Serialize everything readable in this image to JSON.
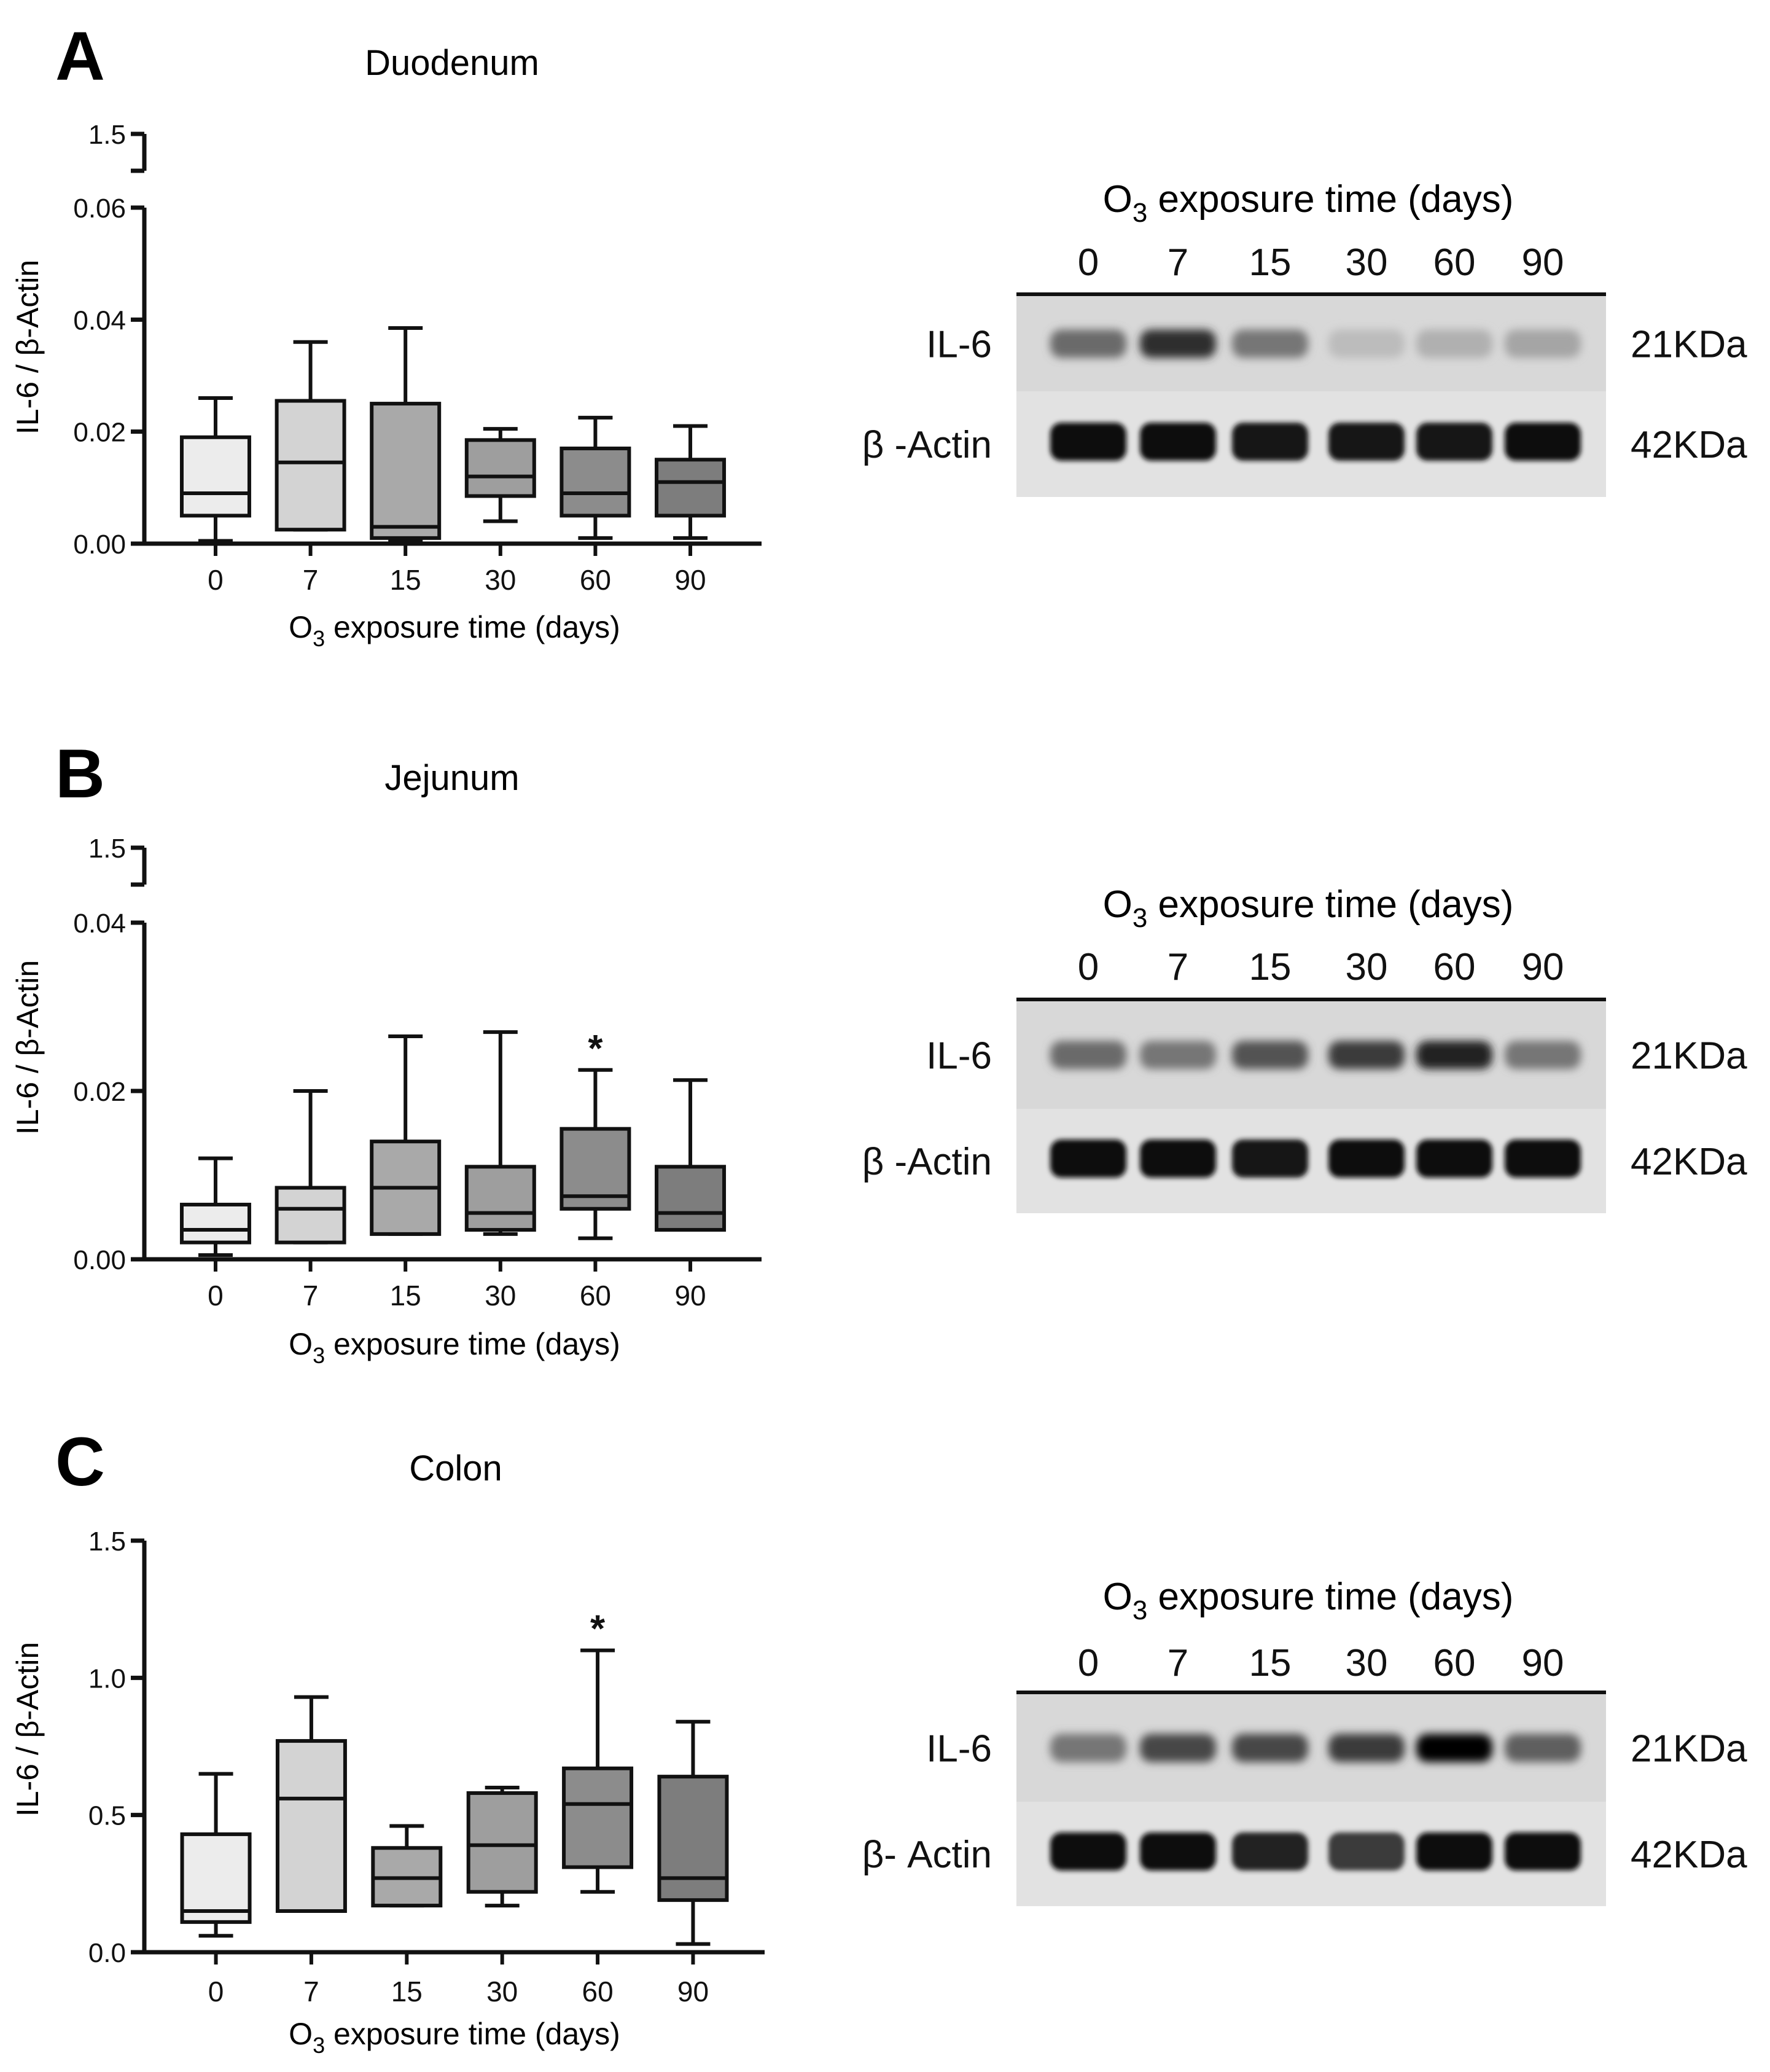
{
  "figure": {
    "xlabel_main": "O",
    "xlabel_sub": "3",
    "xlabel_rest": " exposure time (days)",
    "blot_header_main": "O",
    "blot_header_sub": "3",
    "blot_header_rest": " exposure time (days)",
    "colors": {
      "box_fills": [
        "#ececec",
        "#d3d3d3",
        "#a9a9a9",
        "#9e9e9e",
        "#8c8c8c",
        "#7d7d7d"
      ],
      "stroke": "#111111",
      "blot_bg": "#d8d8d8"
    }
  },
  "chart_data": [
    {
      "panel_letter": "A",
      "type": "box",
      "title": "Duodenum",
      "ylabel": "IL-6 / β-Actin",
      "xlabel": "O3 exposure time (days)",
      "axis_break": true,
      "ylim": [
        0,
        0.06
      ],
      "yticks": [
        "0.00",
        "0.02",
        "0.04",
        "0.06"
      ],
      "ytick_values": [
        0,
        0.02,
        0.04,
        0.06
      ],
      "break_top_label": "1.5",
      "categories": [
        "0",
        "7",
        "15",
        "30",
        "60",
        "90"
      ],
      "boxes": [
        {
          "min": 0.0005,
          "q1": 0.005,
          "median": 0.009,
          "q3": 0.019,
          "max": 0.026
        },
        {
          "min": 0.0025,
          "q1": 0.0025,
          "median": 0.0145,
          "q3": 0.0255,
          "max": 0.036
        },
        {
          "min": 0.0005,
          "q1": 0.001,
          "median": 0.003,
          "q3": 0.025,
          "max": 0.0385
        },
        {
          "min": 0.004,
          "q1": 0.0085,
          "median": 0.012,
          "q3": 0.0185,
          "max": 0.0205
        },
        {
          "min": 0.001,
          "q1": 0.005,
          "median": 0.009,
          "q3": 0.017,
          "max": 0.0225
        },
        {
          "min": 0.001,
          "q1": 0.005,
          "median": 0.011,
          "q3": 0.015,
          "max": 0.021
        }
      ],
      "significance": [
        "",
        "",
        "",
        "",
        "",
        ""
      ],
      "blot": {
        "lanes": [
          "0",
          "7",
          "15",
          "30",
          "60",
          "90"
        ],
        "rows": [
          {
            "label": "IL-6",
            "kda": "21KDa",
            "intensity": [
              0.55,
              0.8,
              0.5,
              0.2,
              0.25,
              0.3
            ]
          },
          {
            "label": "β -Actin",
            "kda": "42KDa",
            "intensity": [
              0.95,
              0.95,
              0.92,
              0.92,
              0.92,
              0.95
            ]
          }
        ]
      }
    },
    {
      "panel_letter": "B",
      "type": "box",
      "title": "Jejunum",
      "ylabel": "IL-6 / β-Actin",
      "xlabel": "O3 exposure time (days)",
      "axis_break": true,
      "ylim": [
        0,
        0.04
      ],
      "yticks": [
        "0.00",
        "0.02",
        "0.04"
      ],
      "ytick_values": [
        0,
        0.02,
        0.04
      ],
      "break_top_label": "1.5",
      "categories": [
        "0",
        "7",
        "15",
        "30",
        "60",
        "90"
      ],
      "boxes": [
        {
          "min": 0.0005,
          "q1": 0.002,
          "median": 0.0035,
          "q3": 0.0065,
          "max": 0.012
        },
        {
          "min": 0.002,
          "q1": 0.002,
          "median": 0.006,
          "q3": 0.0085,
          "max": 0.02
        },
        {
          "min": 0.003,
          "q1": 0.003,
          "median": 0.0085,
          "q3": 0.014,
          "max": 0.0265
        },
        {
          "min": 0.003,
          "q1": 0.0035,
          "median": 0.0055,
          "q3": 0.011,
          "max": 0.027
        },
        {
          "min": 0.0025,
          "q1": 0.006,
          "median": 0.0075,
          "q3": 0.0155,
          "max": 0.0225
        },
        {
          "min": 0.0035,
          "q1": 0.0035,
          "median": 0.0055,
          "q3": 0.011,
          "max": 0.0213
        }
      ],
      "significance": [
        "",
        "",
        "",
        "",
        "*",
        ""
      ],
      "blot": {
        "lanes": [
          "0",
          "7",
          "15",
          "30",
          "60",
          "90"
        ],
        "rows": [
          {
            "label": "IL-6",
            "kda": "21KDa",
            "intensity": [
              0.55,
              0.5,
              0.65,
              0.75,
              0.85,
              0.5
            ]
          },
          {
            "label": "β -Actin",
            "kda": "42KDa",
            "intensity": [
              0.95,
              0.95,
              0.92,
              0.95,
              0.95,
              0.93
            ]
          }
        ]
      }
    },
    {
      "panel_letter": "C",
      "type": "box",
      "title": "Colon",
      "ylabel": "IL-6 / β-Actin",
      "xlabel": "O3 exposure time (days)",
      "axis_break": false,
      "ylim": [
        0,
        1.5
      ],
      "yticks": [
        "0.0",
        "0.5",
        "1.0",
        "1.5"
      ],
      "ytick_values": [
        0,
        0.5,
        1.0,
        1.5
      ],
      "break_top_label": "",
      "categories": [
        "0",
        "7",
        "15",
        "30",
        "60",
        "90"
      ],
      "boxes": [
        {
          "min": 0.06,
          "q1": 0.11,
          "median": 0.15,
          "q3": 0.43,
          "max": 0.65
        },
        {
          "min": 0.15,
          "q1": 0.15,
          "median": 0.56,
          "q3": 0.77,
          "max": 0.93
        },
        {
          "min": 0.17,
          "q1": 0.17,
          "median": 0.27,
          "q3": 0.38,
          "max": 0.46
        },
        {
          "min": 0.17,
          "q1": 0.22,
          "median": 0.39,
          "q3": 0.58,
          "max": 0.6
        },
        {
          "min": 0.22,
          "q1": 0.31,
          "median": 0.54,
          "q3": 0.67,
          "max": 1.1
        },
        {
          "min": 0.03,
          "q1": 0.19,
          "median": 0.27,
          "q3": 0.64,
          "max": 0.84
        }
      ],
      "significance": [
        "",
        "",
        "",
        "",
        "*",
        ""
      ],
      "blot": {
        "lanes": [
          "0",
          "7",
          "15",
          "30",
          "60",
          "90"
        ],
        "rows": [
          {
            "label": "IL-6",
            "kda": "21KDa",
            "intensity": [
              0.5,
              0.7,
              0.7,
              0.75,
              0.98,
              0.6
            ]
          },
          {
            "label": "β- Actin",
            "kda": "42KDa",
            "intensity": [
              0.95,
              0.95,
              0.85,
              0.75,
              0.95,
              0.97
            ]
          }
        ]
      }
    }
  ]
}
